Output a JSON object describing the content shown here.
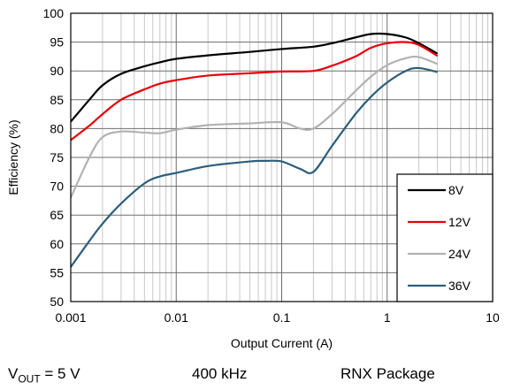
{
  "chart_data": {
    "type": "line",
    "title": "",
    "xlabel": "Output Current (A)",
    "ylabel": "Efficiency (%)",
    "x_scale": "log",
    "xlim": [
      0.001,
      10
    ],
    "ylim": [
      50,
      100
    ],
    "x_ticks": [
      "0.001",
      "0.01",
      "0.1",
      "1",
      "10"
    ],
    "y_ticks": [
      "50",
      "55",
      "60",
      "65",
      "70",
      "75",
      "80",
      "85",
      "90",
      "95",
      "100"
    ],
    "grid": true,
    "legend_position": "bottom-right",
    "series": [
      {
        "name": "8V",
        "color": "#000000",
        "points": [
          [
            0.001,
            81.2
          ],
          [
            0.0015,
            85.0
          ],
          [
            0.002,
            87.5
          ],
          [
            0.003,
            89.5
          ],
          [
            0.005,
            90.8
          ],
          [
            0.007,
            91.5
          ],
          [
            0.01,
            92.1
          ],
          [
            0.02,
            92.7
          ],
          [
            0.05,
            93.3
          ],
          [
            0.1,
            93.8
          ],
          [
            0.2,
            94.2
          ],
          [
            0.3,
            94.8
          ],
          [
            0.5,
            95.8
          ],
          [
            0.7,
            96.4
          ],
          [
            1.0,
            96.4
          ],
          [
            1.5,
            95.8
          ],
          [
            2.0,
            94.8
          ],
          [
            3.0,
            93.0
          ]
        ]
      },
      {
        "name": "12V",
        "color": "#e8000b",
        "points": [
          [
            0.001,
            78.0
          ],
          [
            0.0015,
            80.5
          ],
          [
            0.002,
            82.5
          ],
          [
            0.003,
            85.0
          ],
          [
            0.005,
            86.8
          ],
          [
            0.007,
            87.8
          ],
          [
            0.01,
            88.4
          ],
          [
            0.02,
            89.2
          ],
          [
            0.05,
            89.6
          ],
          [
            0.1,
            89.9
          ],
          [
            0.2,
            90.0
          ],
          [
            0.3,
            90.9
          ],
          [
            0.5,
            92.5
          ],
          [
            0.7,
            94.0
          ],
          [
            1.0,
            94.8
          ],
          [
            1.5,
            95.0
          ],
          [
            2.0,
            94.5
          ],
          [
            3.0,
            92.6
          ]
        ]
      },
      {
        "name": "24V",
        "color": "#b2b2b2",
        "points": [
          [
            0.001,
            68.0
          ],
          [
            0.0015,
            75.0
          ],
          [
            0.002,
            78.5
          ],
          [
            0.003,
            79.5
          ],
          [
            0.005,
            79.3
          ],
          [
            0.007,
            79.2
          ],
          [
            0.01,
            79.8
          ],
          [
            0.02,
            80.6
          ],
          [
            0.05,
            80.9
          ],
          [
            0.1,
            81.1
          ],
          [
            0.15,
            80.0
          ],
          [
            0.2,
            80.0
          ],
          [
            0.3,
            82.5
          ],
          [
            0.5,
            86.5
          ],
          [
            0.7,
            89.0
          ],
          [
            1.0,
            91.0
          ],
          [
            1.5,
            92.2
          ],
          [
            2.0,
            92.4
          ],
          [
            3.0,
            91.2
          ]
        ]
      },
      {
        "name": "36V",
        "color": "#2d5e7a",
        "points": [
          [
            0.001,
            56.0
          ],
          [
            0.0015,
            60.5
          ],
          [
            0.002,
            63.5
          ],
          [
            0.003,
            67.0
          ],
          [
            0.005,
            70.5
          ],
          [
            0.007,
            71.7
          ],
          [
            0.01,
            72.3
          ],
          [
            0.02,
            73.5
          ],
          [
            0.05,
            74.3
          ],
          [
            0.07,
            74.4
          ],
          [
            0.1,
            74.3
          ],
          [
            0.15,
            73.0
          ],
          [
            0.2,
            72.5
          ],
          [
            0.3,
            77.0
          ],
          [
            0.5,
            82.5
          ],
          [
            0.7,
            85.5
          ],
          [
            1.0,
            88.0
          ],
          [
            1.5,
            90.0
          ],
          [
            2.0,
            90.5
          ],
          [
            3.0,
            89.8
          ]
        ]
      }
    ]
  },
  "footer": {
    "vout_label": "V",
    "vout_sub": "OUT",
    "vout_value": " = 5 V",
    "frequency": "400 kHz",
    "package": "RNX Package"
  }
}
